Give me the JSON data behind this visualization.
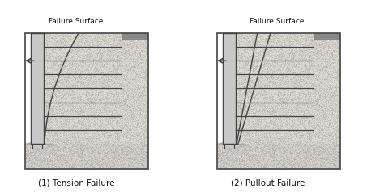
{
  "fig_width": 4.74,
  "fig_height": 2.39,
  "dpi": 100,
  "bg_color": "#ffffff",
  "line_color": "#444444",
  "text_color": "#111111",
  "soil_dot_color": "#888888",
  "wall_face_color": "#c8c8c8",
  "foundation_soil_color": "#d8d4cc",
  "reinf_soil_color": "#dedad2",
  "retained_soil_color": "#dedad2",
  "top_cap_color": "#888888",
  "diagrams": [
    {
      "title": "(1) Tension Failure",
      "label": "Failure Surface",
      "is_tension": true
    },
    {
      "title": "(2) Pullout Failure",
      "label": "Failure Surface",
      "is_tension": false
    }
  ]
}
